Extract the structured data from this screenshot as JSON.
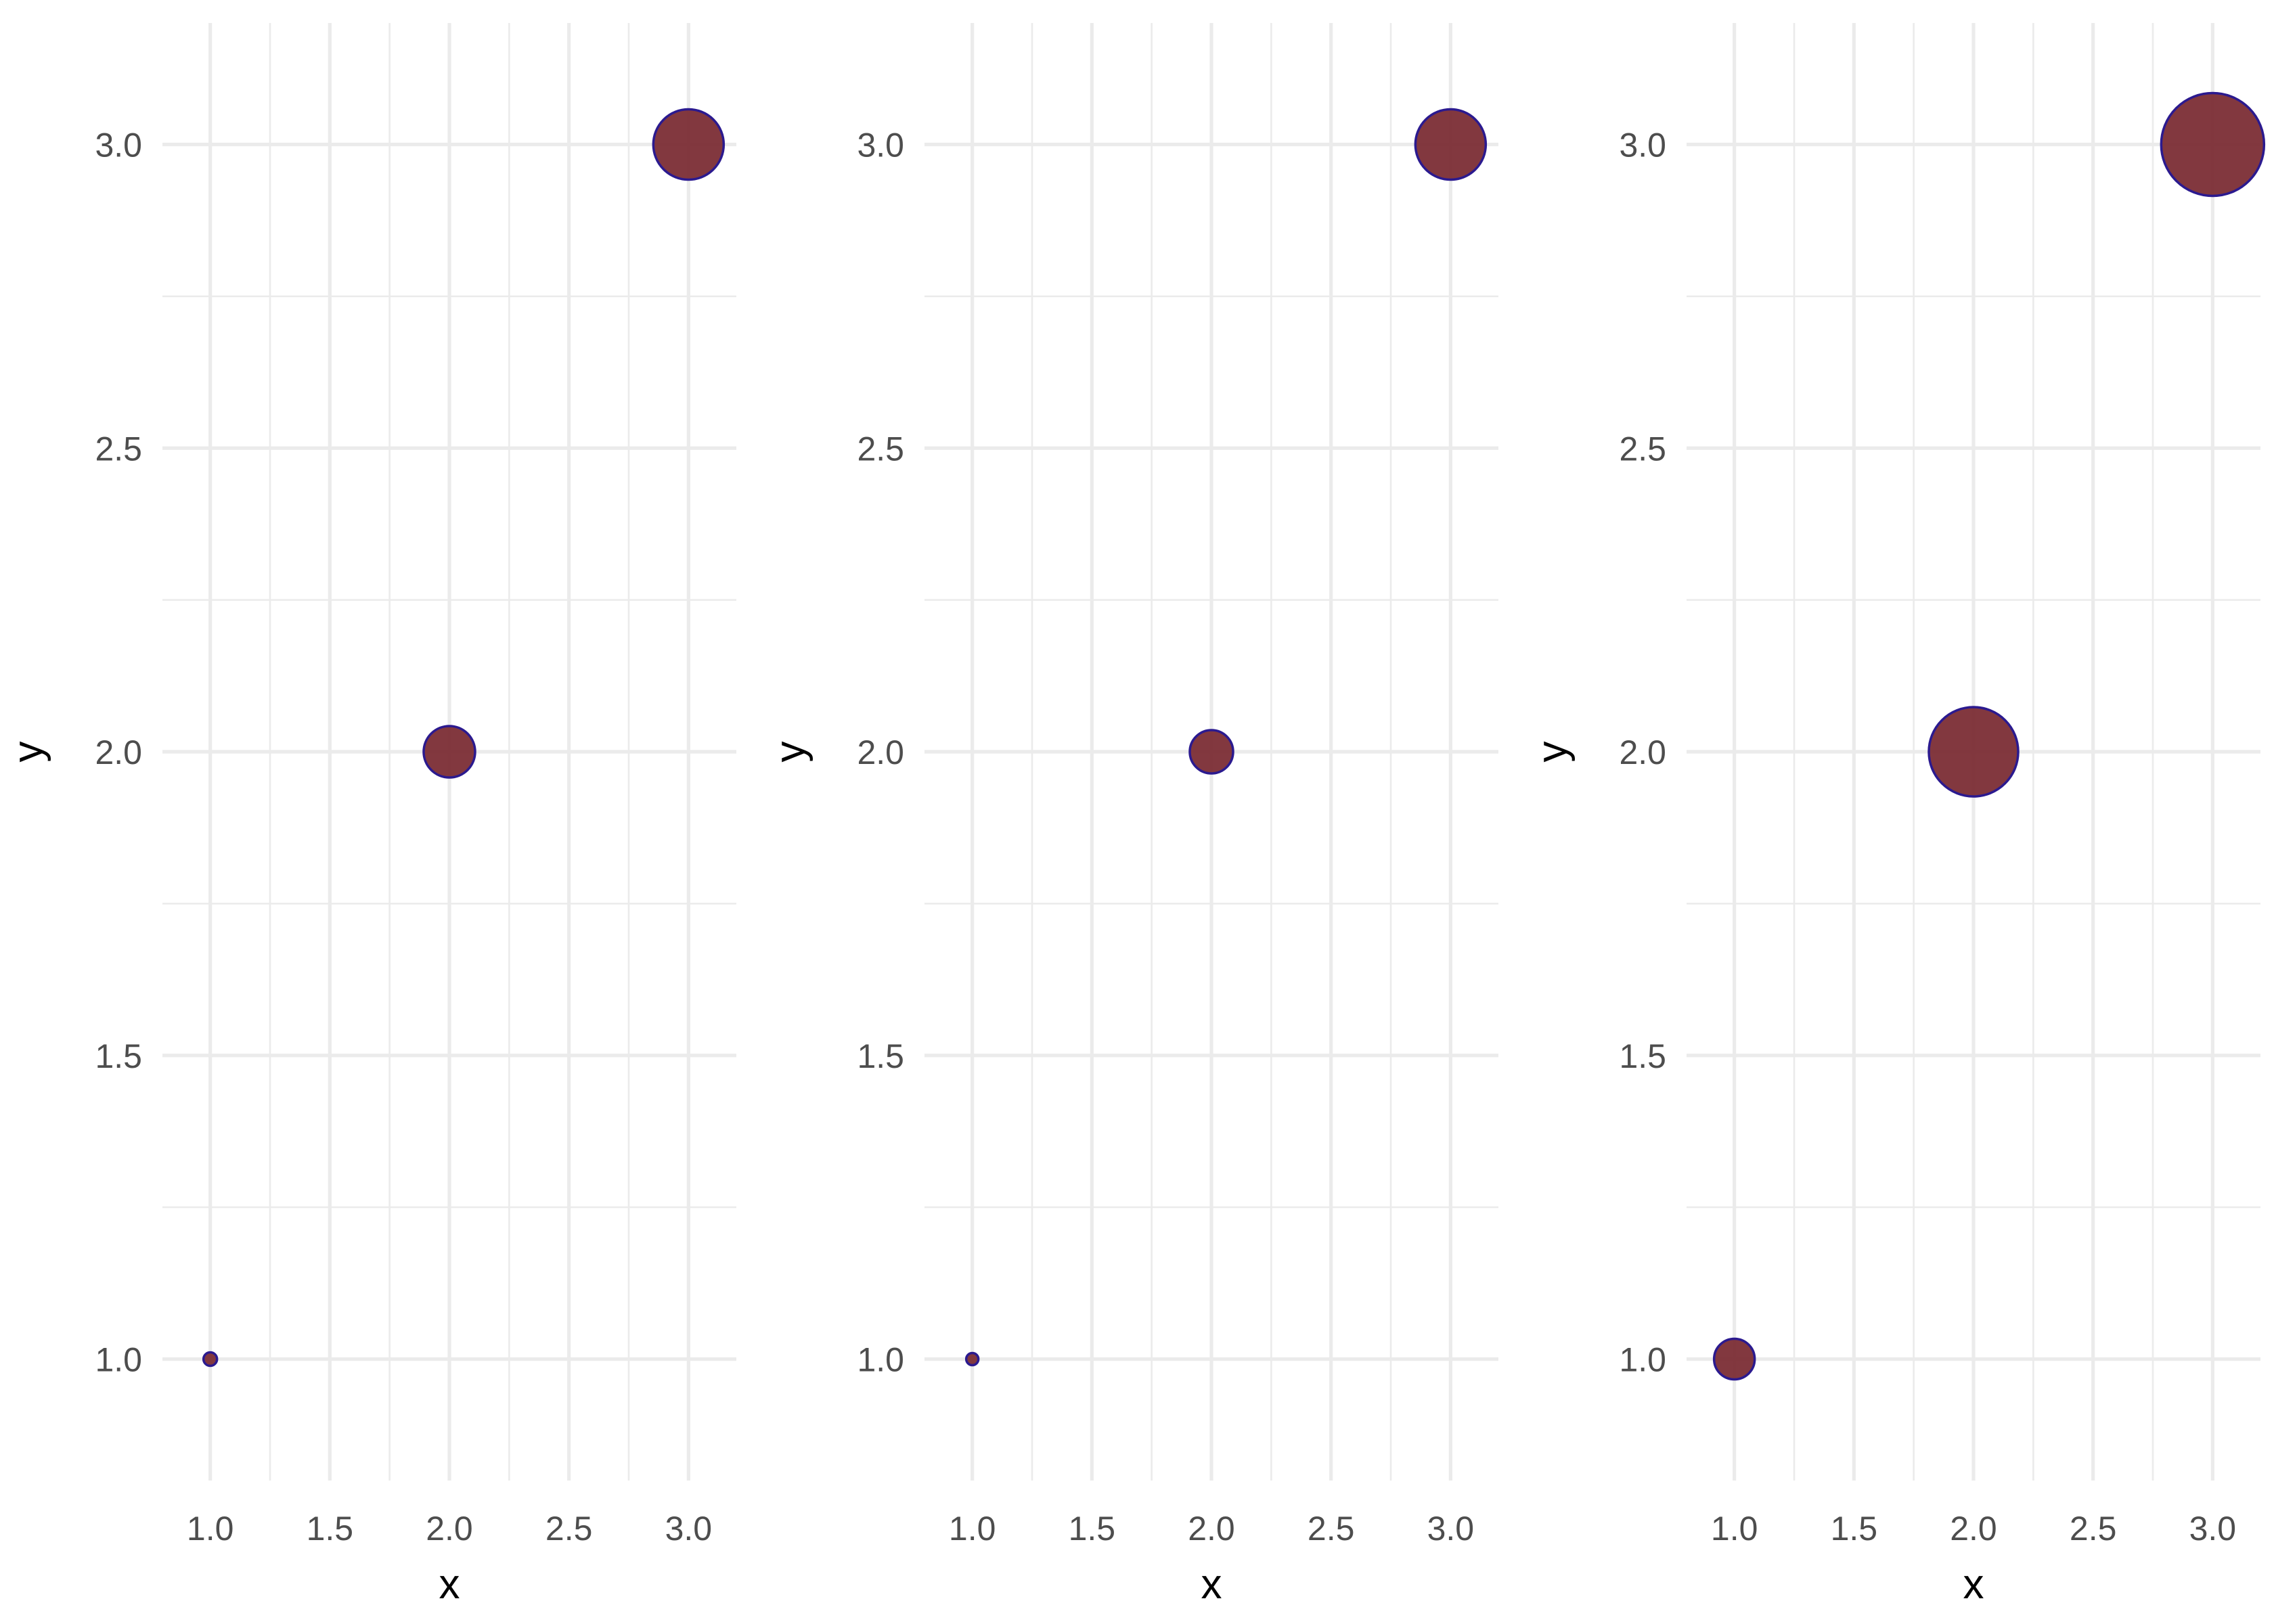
{
  "chart_data": [
    {
      "type": "scatter",
      "xlabel": "x",
      "ylabel": "y",
      "xlim": [
        0.8,
        3.2
      ],
      "ylim": [
        0.8,
        3.2
      ],
      "x_ticks": [
        "1.0",
        "1.5",
        "2.0",
        "2.5",
        "3.0"
      ],
      "y_ticks": [
        "1.0",
        "1.5",
        "2.0",
        "2.5",
        "3.0"
      ],
      "grid": true,
      "legend": "none",
      "x": [
        1,
        2,
        3
      ],
      "y": [
        1,
        2,
        3
      ],
      "size": [
        1,
        4,
        9
      ]
    },
    {
      "type": "scatter",
      "xlabel": "x",
      "ylabel": "y",
      "xlim": [
        0.8,
        3.2
      ],
      "ylim": [
        0.8,
        3.2
      ],
      "x_ticks": [
        "1.0",
        "1.5",
        "2.0",
        "2.5",
        "3.0"
      ],
      "y_ticks": [
        "1.0",
        "1.5",
        "2.0",
        "2.5",
        "3.0"
      ],
      "grid": true,
      "legend": "none",
      "x": [
        1,
        2,
        3
      ],
      "y": [
        1,
        2,
        3
      ],
      "size": [
        1,
        4,
        9
      ]
    },
    {
      "type": "scatter",
      "xlabel": "x",
      "ylabel": "y",
      "xlim": [
        0.8,
        3.2
      ],
      "ylim": [
        0.8,
        3.2
      ],
      "x_ticks": [
        "1.0",
        "1.5",
        "2.0",
        "2.5",
        "3.0"
      ],
      "y_ticks": [
        "1.0",
        "1.5",
        "2.0",
        "2.5",
        "3.0"
      ],
      "grid": true,
      "legend": "none",
      "x": [
        1,
        2,
        3
      ],
      "y": [
        1,
        2,
        3
      ],
      "size": [
        1,
        4,
        9
      ]
    }
  ],
  "colors": {
    "point_fill": "#7b2d35",
    "point_stroke": "#2b1a8f",
    "grid": "#ebebeb",
    "tick_text": "#4d4d4d",
    "axis_title": "#000000"
  }
}
